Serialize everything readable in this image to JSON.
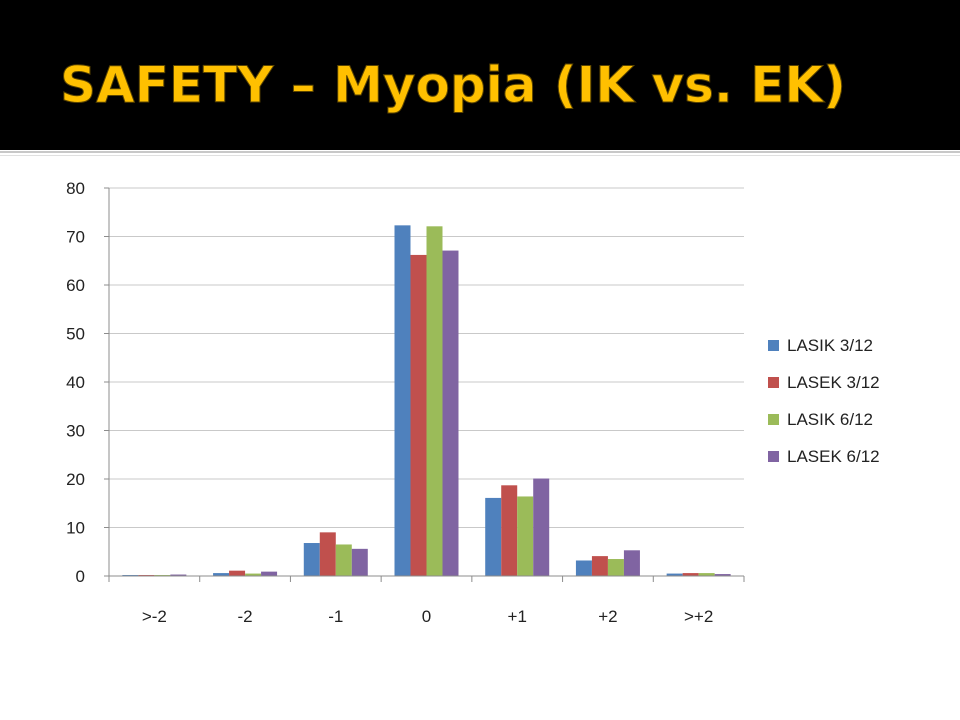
{
  "slide": {
    "title": "SAFETY – Myopia (IK vs. EK)",
    "title_color": "#FFC000",
    "header_bg": "#000000"
  },
  "chart_data": {
    "type": "bar",
    "categories": [
      ">-2",
      "-2",
      "-1",
      "0",
      "+1",
      "+2",
      ">+2"
    ],
    "series": [
      {
        "name": "LASIK 3/12",
        "color": "#4F81BD",
        "values": [
          0.2,
          0.6,
          6.8,
          72.3,
          16.1,
          3.2,
          0.5
        ]
      },
      {
        "name": "LASEK 3/12",
        "color": "#C0504D",
        "values": [
          0.2,
          1.1,
          9.0,
          66.2,
          18.7,
          4.1,
          0.6
        ]
      },
      {
        "name": "LASIK 6/12",
        "color": "#9BBB59",
        "values": [
          0.2,
          0.5,
          6.5,
          72.1,
          16.4,
          3.5,
          0.6
        ]
      },
      {
        "name": "LASEK 6/12",
        "color": "#8064A2",
        "values": [
          0.3,
          0.9,
          5.6,
          67.1,
          20.1,
          5.3,
          0.4
        ]
      }
    ],
    "ylim": [
      0,
      80
    ],
    "yticks": [
      0,
      10,
      20,
      30,
      40,
      50,
      60,
      70,
      80
    ],
    "grid": true,
    "legend": "right",
    "title": "",
    "xlabel": "",
    "ylabel": ""
  }
}
